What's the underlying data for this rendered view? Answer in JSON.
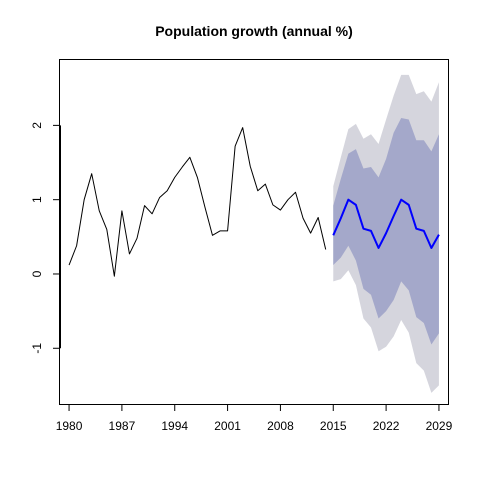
{
  "chart_data": {
    "type": "line",
    "title": "Population growth (annual %)",
    "xlabel": "",
    "ylabel": "",
    "xlim": [
      1978.8,
      2030.2
    ],
    "ylim": [
      -1.75,
      2.88
    ],
    "x_ticks": [
      1980,
      1987,
      1994,
      2001,
      2008,
      2015,
      2022,
      2029
    ],
    "y_ticks": [
      -1,
      0,
      1,
      2
    ],
    "grid": false,
    "legend": "none",
    "colors": {
      "history": "#000000",
      "forecast": "#0000ff",
      "band_80": "#a4a8ca",
      "band_95": "#d5d5dd"
    },
    "series": [
      {
        "role": "history",
        "x": [
          1980,
          1981,
          1982,
          1983,
          1984,
          1985,
          1986,
          1987,
          1988,
          1989,
          1990,
          1991,
          1992,
          1993,
          1994,
          1995,
          1996,
          1997,
          1998,
          1999,
          2000,
          2001,
          2002,
          2003,
          2004,
          2005,
          2006,
          2007,
          2008,
          2009,
          2010,
          2011,
          2012,
          2013,
          2014
        ],
        "values": [
          0.12,
          0.38,
          1.0,
          1.35,
          0.85,
          0.6,
          -0.03,
          0.85,
          0.27,
          0.48,
          0.92,
          0.81,
          1.03,
          1.12,
          1.3,
          1.44,
          1.57,
          1.3,
          0.9,
          0.52,
          0.58,
          0.58,
          1.72,
          1.97,
          1.45,
          1.12,
          1.21,
          0.93,
          0.86,
          1.0,
          1.1,
          0.75,
          0.55,
          0.76,
          0.33
        ]
      },
      {
        "role": "forecast",
        "x": [
          2015,
          2016,
          2017,
          2018,
          2019,
          2020,
          2021,
          2022,
          2023,
          2024,
          2025,
          2026,
          2027,
          2028,
          2029
        ],
        "values": [
          0.52,
          0.75,
          1.0,
          0.93,
          0.61,
          0.58,
          0.35,
          0.55,
          0.78,
          1.0,
          0.93,
          0.61,
          0.58,
          0.35,
          0.53
        ],
        "lower80": [
          0.12,
          0.22,
          0.38,
          0.18,
          -0.2,
          -0.28,
          -0.6,
          -0.5,
          -0.35,
          -0.1,
          -0.22,
          -0.58,
          -0.66,
          -0.95,
          -0.8
        ],
        "upper80": [
          0.92,
          1.28,
          1.62,
          1.68,
          1.42,
          1.44,
          1.3,
          1.55,
          1.9,
          2.1,
          2.08,
          1.8,
          1.8,
          1.65,
          1.88
        ],
        "lower95": [
          -0.1,
          -0.07,
          0.05,
          -0.15,
          -0.6,
          -0.72,
          -1.04,
          -0.98,
          -0.84,
          -0.62,
          -0.79,
          -1.2,
          -1.3,
          -1.6,
          -1.5
        ],
        "upper95": [
          1.18,
          1.57,
          1.95,
          2.02,
          1.82,
          1.88,
          1.75,
          2.08,
          2.4,
          2.68,
          2.68,
          2.42,
          2.46,
          2.32,
          2.58
        ]
      }
    ]
  }
}
